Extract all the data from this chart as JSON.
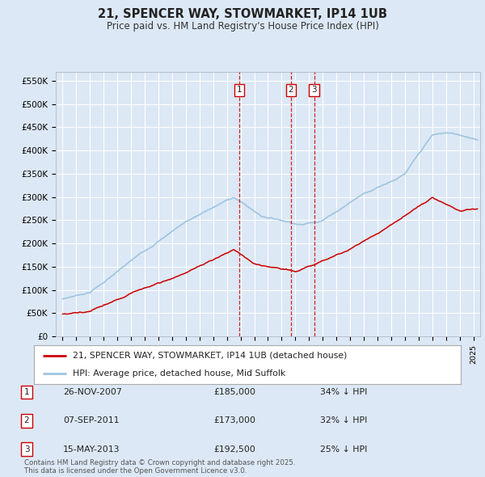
{
  "title": "21, SPENCER WAY, STOWMARKET, IP14 1UB",
  "subtitle": "Price paid vs. HM Land Registry's House Price Index (HPI)",
  "background_color": "#dce8f5",
  "plot_bg_color": "#dce8f5",
  "grid_color": "#ffffff",
  "hpi_color": "#a0c4e0",
  "price_color": "#cc0000",
  "ylim": [
    0,
    570000
  ],
  "yticks": [
    0,
    50000,
    100000,
    150000,
    200000,
    250000,
    300000,
    350000,
    400000,
    450000,
    500000,
    550000
  ],
  "ytick_labels": [
    "£0",
    "£50K",
    "£100K",
    "£150K",
    "£200K",
    "£250K",
    "£300K",
    "£350K",
    "£400K",
    "£450K",
    "£500K",
    "£550K"
  ],
  "transactions": [
    {
      "date": "26-NOV-2007",
      "date_num": 2007.9,
      "price": 185000,
      "label": "1",
      "pct": "34% ↓ HPI"
    },
    {
      "date": "07-SEP-2011",
      "date_num": 2011.68,
      "price": 173000,
      "label": "2",
      "pct": "32% ↓ HPI"
    },
    {
      "date": "15-MAY-2013",
      "date_num": 2013.37,
      "price": 192500,
      "label": "3",
      "pct": "25% ↓ HPI"
    }
  ],
  "legend_label1": "21, SPENCER WAY, STOWMARKET, IP14 1UB (detached house)",
  "legend_label2": "HPI: Average price, detached house, Mid Suffolk",
  "footer": "Contains HM Land Registry data © Crown copyright and database right 2025.\nThis data is licensed under the Open Government Licence v3.0.",
  "xlim_start": 1994.5,
  "xlim_end": 2025.5,
  "xtick_start": 1995,
  "xtick_end": 2025
}
